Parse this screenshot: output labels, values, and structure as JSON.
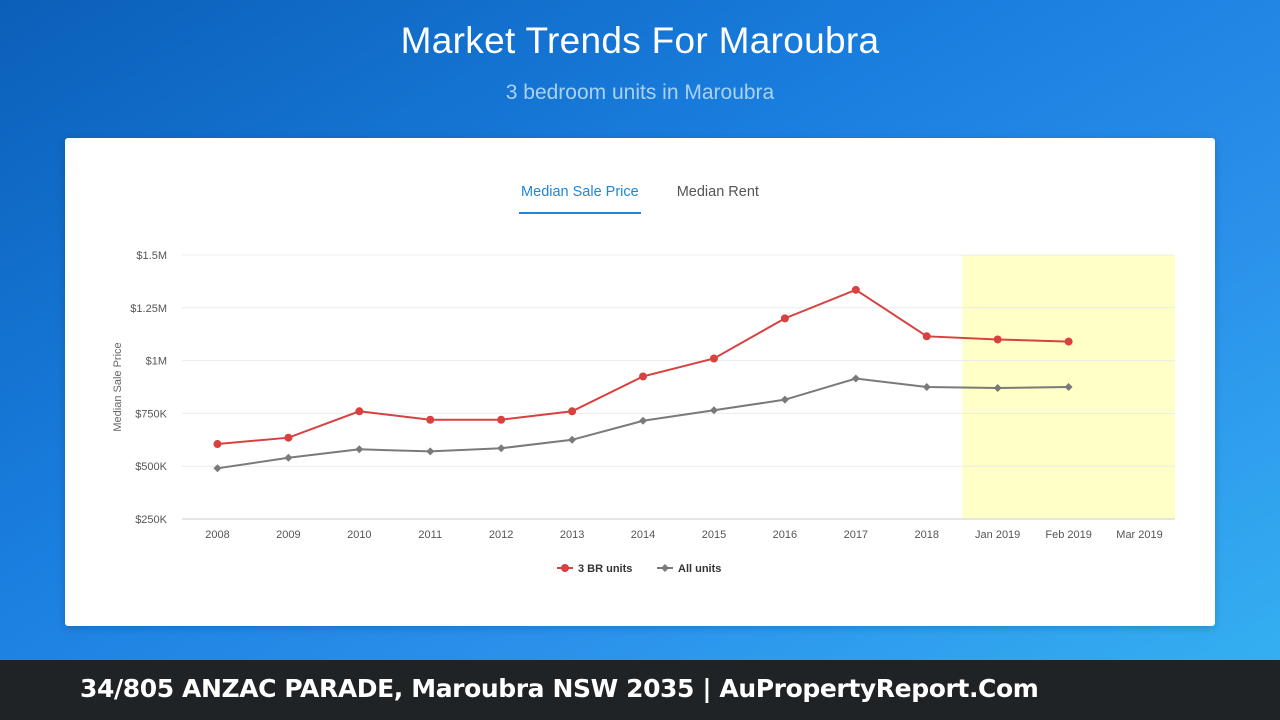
{
  "page": {
    "title": "Market Trends For Maroubra",
    "subtitle": "3 bedroom units in Maroubra"
  },
  "tabs": [
    {
      "label": "Median Sale Price",
      "active": true
    },
    {
      "label": "Median Rent",
      "active": false
    }
  ],
  "footer": {
    "text": "34/805 ANZAC PARADE, Maroubra NSW 2035 | AuPropertyReport.Com"
  },
  "colors": {
    "series_3br": "#d94040",
    "series_all": "#7a7a7a",
    "forecast_band": "#ffffc8",
    "active_tab": "#1f86d6"
  },
  "chart_data": {
    "type": "line",
    "title": "",
    "xlabel": "",
    "ylabel": "Median Sale Price",
    "categories": [
      "2008",
      "2009",
      "2010",
      "2011",
      "2012",
      "2013",
      "2014",
      "2015",
      "2016",
      "2017",
      "2018",
      "Jan 2019",
      "Feb 2019",
      "Mar 2019"
    ],
    "y_ticks": [
      {
        "value": 250000,
        "label": "$250K"
      },
      {
        "value": 500000,
        "label": "$500K"
      },
      {
        "value": 750000,
        "label": "$750K"
      },
      {
        "value": 1000000,
        "label": "$1M"
      },
      {
        "value": 1250000,
        "label": "$1.25M"
      },
      {
        "value": 1500000,
        "label": "$1.5M"
      }
    ],
    "ylim": [
      250000,
      1500000
    ],
    "grid": true,
    "legend_position": "bottom-center",
    "highlight_range": [
      "Jan 2019",
      "Mar 2019"
    ],
    "series": [
      {
        "name": "3 BR units",
        "marker": "circle",
        "values": [
          605000,
          635000,
          760000,
          720000,
          720000,
          760000,
          925000,
          1010000,
          1200000,
          1335000,
          1115000,
          1100000,
          1090000,
          null
        ]
      },
      {
        "name": "All units",
        "marker": "diamond",
        "values": [
          490000,
          540000,
          580000,
          570000,
          585000,
          625000,
          715000,
          765000,
          815000,
          915000,
          875000,
          870000,
          875000,
          null
        ]
      }
    ]
  }
}
